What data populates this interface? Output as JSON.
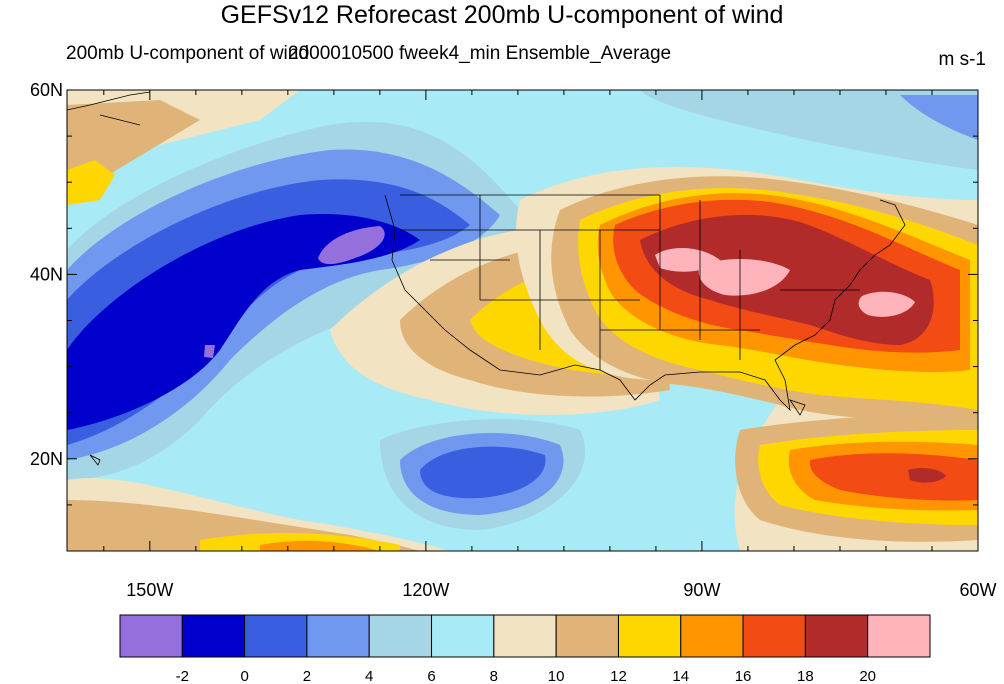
{
  "title": "GEFSv12 Reforecast 200mb U-component of wind",
  "left_string": "200mb U-component of wind",
  "center_string": "20000105",
  "right_center_string": "00 fweek4_min Ensemble_Average",
  "units": "m s-1",
  "chart_data": {
    "type": "contour-map",
    "variable": "200mb U-component of wind",
    "x_ticks": [
      "150W",
      "120W",
      "90W",
      "60W"
    ],
    "y_ticks": [
      "60N",
      "40N",
      "20N"
    ],
    "lon_range": [
      -159,
      -60
    ],
    "lat_range": [
      10,
      60
    ],
    "colorbar": {
      "levels": [
        "-2",
        "0",
        "2",
        "4",
        "6",
        "8",
        "10",
        "12",
        "14",
        "16",
        "18",
        "20"
      ],
      "colors": [
        "#9370db",
        "#0000cd",
        "#3a5ee0",
        "#7098ef",
        "#a5d6e6",
        "#a8eaf5",
        "#f2e3c2",
        "#e0b478",
        "#ffd700",
        "#ff9500",
        "#f24b14",
        "#b22b2b",
        "#ffb4bc"
      ]
    }
  }
}
